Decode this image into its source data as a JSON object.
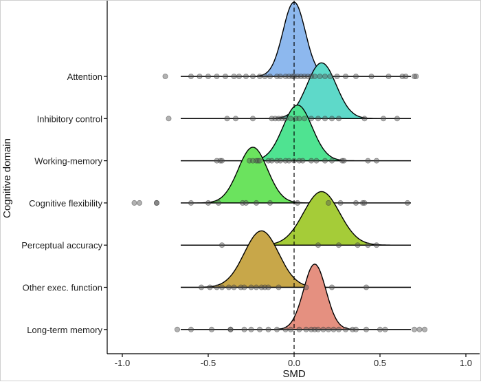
{
  "chart_data": {
    "type": "ridgeline",
    "xlabel": "SMD",
    "ylabel": "Cognitive domain",
    "xlim": [
      -1.0,
      1.0
    ],
    "x_ticks": [
      "-1.0",
      "-0.5",
      "0.0",
      "0.5",
      "1.0"
    ],
    "x_tick_values": [
      -1.0,
      -0.5,
      0.0,
      0.5,
      1.0
    ],
    "reference_line": 0.0,
    "range": [
      -0.66,
      0.68
    ],
    "series": [
      {
        "name": "Attention",
        "color": "#8DB8EE",
        "mean": 0.0,
        "sd": 0.065,
        "peak": 1.0,
        "points": [
          -0.75,
          -0.6,
          -0.55,
          -0.5,
          -0.45,
          -0.4,
          -0.35,
          -0.32,
          -0.28,
          -0.24,
          -0.2,
          -0.17,
          -0.14,
          -0.1,
          -0.08,
          -0.05,
          -0.03,
          -0.01,
          0.0,
          0.02,
          0.04,
          0.06,
          0.08,
          0.1,
          0.12,
          0.15,
          0.18,
          0.21,
          0.25,
          0.3,
          0.36,
          0.45,
          0.55,
          0.63,
          0.65,
          0.7,
          0.71
        ]
      },
      {
        "name": "Inhibitory control",
        "color": "#5ED9C9",
        "mean": 0.16,
        "sd": 0.085,
        "peak": 0.75,
        "points": [
          -0.73,
          -0.39,
          -0.34,
          -0.24,
          -0.13,
          -0.11,
          -0.09,
          -0.07,
          -0.05,
          -0.02,
          0.01,
          0.03,
          0.06,
          0.1,
          0.14,
          0.18,
          0.22,
          0.26,
          0.41,
          0.52,
          0.6
        ]
      },
      {
        "name": "Working-memory",
        "color": "#4FE391",
        "mean": 0.02,
        "sd": 0.085,
        "peak": 0.75,
        "points": [
          -0.45,
          -0.43,
          -0.42,
          -0.26,
          -0.24,
          -0.22,
          -0.21,
          -0.2,
          -0.15,
          -0.13,
          -0.1,
          -0.08,
          -0.05,
          -0.03,
          0.0,
          0.03,
          0.05,
          0.1,
          0.13,
          0.18,
          0.22,
          0.28,
          0.29,
          0.43,
          0.48
        ]
      },
      {
        "name": "Cognitive flexibility",
        "color": "#6BE35E",
        "mean": -0.24,
        "sd": 0.085,
        "peak": 0.75,
        "points": [
          -0.93,
          -0.9,
          -0.8,
          -0.8,
          -0.6,
          -0.5,
          -0.44,
          -0.3,
          -0.28,
          -0.22,
          -0.14,
          0.02,
          0.2,
          0.27,
          0.36,
          0.4,
          0.41,
          0.66
        ]
      },
      {
        "name": "Perceptual accuracy",
        "color": "#A5CC38",
        "mean": 0.16,
        "sd": 0.105,
        "peak": 0.72,
        "points": [
          -0.42,
          0.14,
          0.26,
          0.37,
          0.43,
          0.48
        ]
      },
      {
        "name": "Other exec. function",
        "color": "#C8A749",
        "mean": -0.19,
        "sd": 0.1,
        "peak": 0.76,
        "points": [
          -0.54,
          -0.49,
          -0.45,
          -0.42,
          -0.38,
          -0.35,
          -0.31,
          -0.29,
          -0.25,
          -0.22,
          -0.19,
          -0.17,
          -0.15,
          -0.09,
          0.07,
          0.22,
          0.42
        ]
      },
      {
        "name": "Long-term memory",
        "color": "#E59080",
        "mean": 0.12,
        "sd": 0.065,
        "peak": 0.88,
        "points": [
          -0.68,
          -0.6,
          -0.48,
          -0.37,
          -0.37,
          -0.29,
          -0.25,
          -0.2,
          -0.15,
          -0.1,
          -0.05,
          -0.02,
          0.03,
          0.07,
          0.1,
          0.12,
          0.14,
          0.17,
          0.2,
          0.23,
          0.26,
          0.3,
          0.34,
          0.36,
          0.42,
          0.5,
          0.53,
          0.7,
          0.73,
          0.76
        ]
      }
    ]
  }
}
